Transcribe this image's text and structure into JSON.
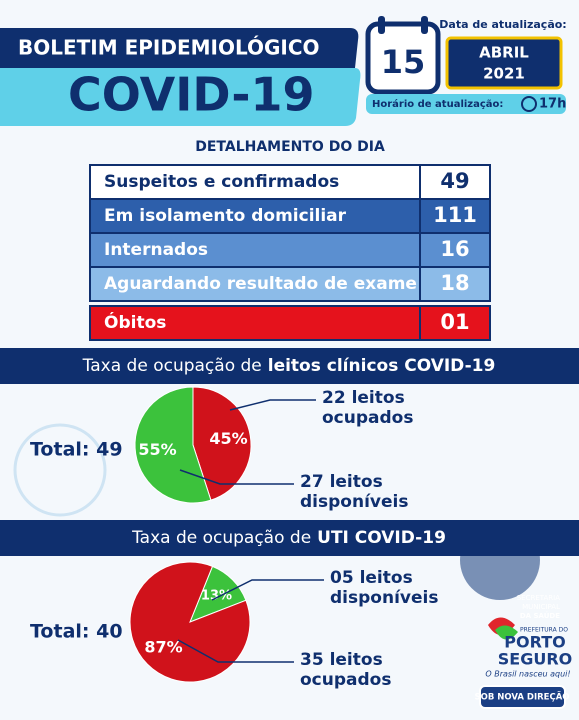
{
  "header": {
    "title": "BOLETIM EPIDEMIOLÓGICO",
    "subtitle": "COVID-19",
    "date_label": "Data de atualização:",
    "day": "15",
    "month": "ABRIL",
    "year": "2021",
    "time_label": "Horário de atualização:",
    "time": "17h"
  },
  "table": {
    "title": "DETALHAMENTO DO DIA",
    "rows": [
      [
        "Suspeitos e confirmados",
        "49"
      ],
      [
        "Em isolamento domiciliar",
        "111"
      ],
      [
        "Internados",
        "16"
      ],
      [
        "Aguardando resultado de exame",
        "18"
      ],
      [
        "Óbitos",
        "01"
      ]
    ]
  },
  "chart_data": [
    {
      "type": "pie",
      "title": [
        "Taxa de ocupação de",
        "leitos clínicos COVID-19"
      ],
      "total": "Total: 49",
      "values": [
        45,
        55
      ],
      "value_labels": [
        "45%",
        "55%"
      ],
      "colors": [
        "#d0121b",
        "#3cc23c"
      ],
      "annotations": [
        [
          "22 leitos",
          "ocupados"
        ],
        [
          "27 leitos",
          "disponíveis"
        ]
      ]
    },
    {
      "type": "pie",
      "title": [
        "Taxa de ocupação de",
        "UTI COVID-19"
      ],
      "total": "Total: 40",
      "values": [
        13,
        87
      ],
      "value_labels": [
        "13%",
        "87%"
      ],
      "colors": [
        "#3cc23c",
        "#d0121b"
      ],
      "annotations": [
        [
          "05 leitos",
          "disponíveis"
        ],
        [
          "35 leitos",
          "ocupados"
        ]
      ]
    }
  ],
  "logo": {
    "department": [
      "SECRETARIA",
      "MUNICIPAL",
      "DA SAÚDE"
    ],
    "prefix": "PREFEITURA DO",
    "city": [
      "PORTO",
      "SEGURO"
    ],
    "slogan": "O Brasil nasceu aqui!",
    "badge": "SOB NOVA DIREÇÃO"
  }
}
